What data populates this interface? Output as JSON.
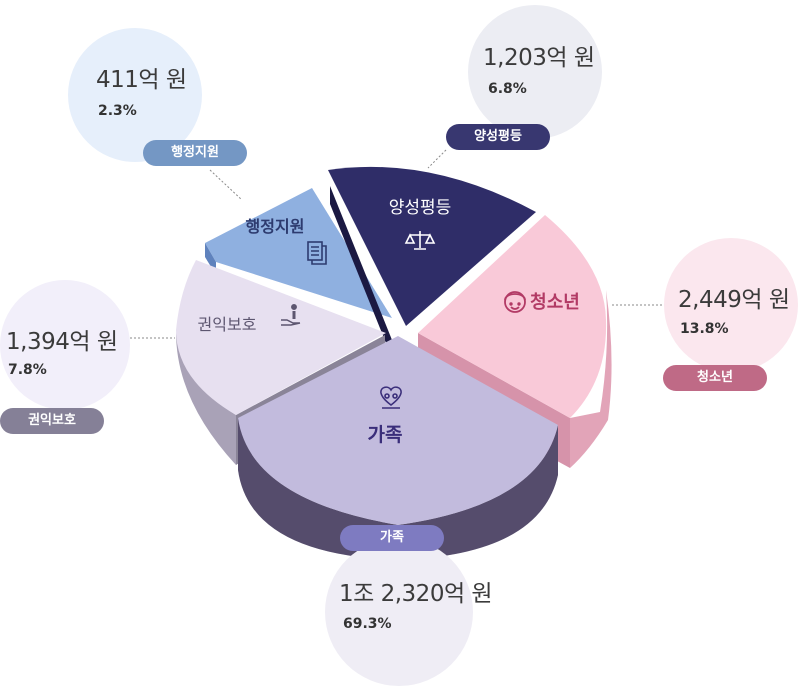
{
  "chart_data": {
    "type": "pie",
    "categories": [
      "가족",
      "청소년",
      "권익보호",
      "양성평등",
      "행정지원"
    ],
    "amounts": [
      "1조 2,320억 원",
      "2,449억 원",
      "1,394억 원",
      "1,203억 원",
      "411억 원"
    ],
    "values": [
      69.3,
      13.8,
      7.8,
      6.8,
      2.3
    ],
    "percent_labels": [
      "69.3%",
      "13.8%",
      "7.8%",
      "6.8%",
      "2.3%"
    ]
  },
  "colors": {
    "family_top": "#c2bbdd",
    "family_side": "#5e5575",
    "youth_top": "#f9c9d8",
    "youth_side": "#e2a4b8",
    "rights_top": "#e7e0f0",
    "rights_side": "#a9a2b7",
    "gender_top": "#2f2d68",
    "gender_side": "#1b1942",
    "admin_top": "#8fb0e0",
    "admin_side": "#5f82bd",
    "pill_family": "#7e7bc1",
    "pill_youth": "#bf6a86",
    "pill_rights": "#858097",
    "pill_gender": "#383770",
    "pill_admin": "#7497c4"
  },
  "icons": {
    "family": "heart-people-icon",
    "youth": "smiling-face-icon",
    "rights": "hand-person-icon",
    "gender": "scales-icon",
    "admin": "document-icon"
  }
}
